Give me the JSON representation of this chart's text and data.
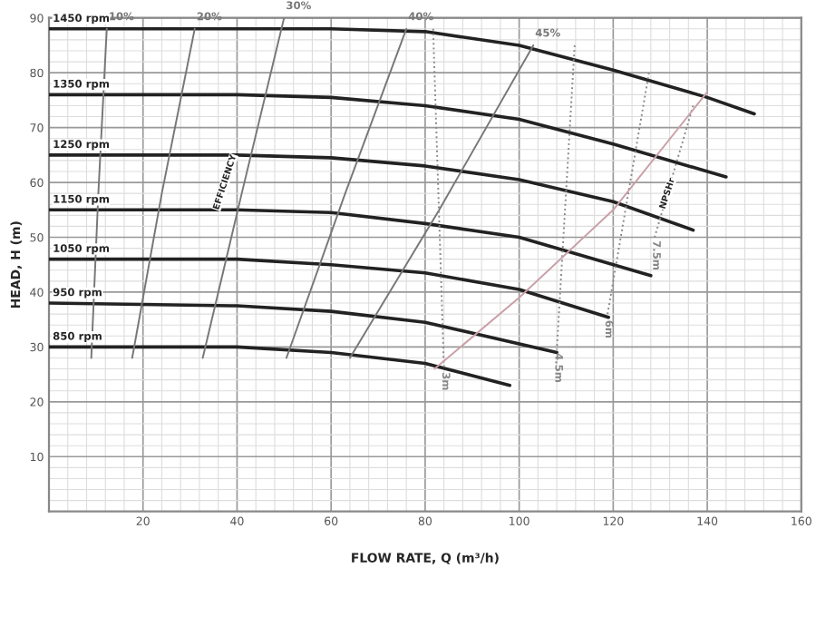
{
  "chart_data": {
    "type": "line",
    "xlabel": "FLOW RATE, Q (m³/h)",
    "ylabel": "HEAD, H (m)",
    "xlim": [
      0,
      160
    ],
    "ylim": [
      0,
      90
    ],
    "xticks": [
      {
        "value": 0,
        "label": null
      },
      20,
      40,
      60,
      80,
      100,
      120,
      140,
      160
    ],
    "yticks": [
      {
        "value": 0,
        "label": null
      },
      10,
      20,
      30,
      40,
      50,
      60,
      70,
      80,
      90
    ],
    "grid": true,
    "legend": false,
    "series": [
      {
        "name": "1450 rpm",
        "color": "#222222",
        "x": [
          0,
          40,
          60,
          80,
          100,
          120,
          140,
          150
        ],
        "values": [
          88,
          88,
          88,
          87.5,
          85,
          80.5,
          75.5,
          72.5
        ]
      },
      {
        "name": "1350 rpm",
        "color": "#222222",
        "x": [
          0,
          40,
          60,
          80,
          100,
          120,
          144
        ],
        "values": [
          76,
          76,
          75.5,
          74,
          71.5,
          67,
          61
        ]
      },
      {
        "name": "1250 rpm",
        "color": "#222222",
        "x": [
          0,
          40,
          60,
          80,
          100,
          120,
          137
        ],
        "values": [
          65,
          65,
          64.5,
          63,
          60.5,
          56.5,
          51.3
        ]
      },
      {
        "name": "1150 rpm",
        "color": "#222222",
        "x": [
          0,
          40,
          60,
          80,
          100,
          128
        ],
        "values": [
          55,
          55,
          54.5,
          52.5,
          50,
          43
        ]
      },
      {
        "name": "1050 rpm",
        "color": "#222222",
        "x": [
          0,
          40,
          60,
          80,
          100,
          119
        ],
        "values": [
          46,
          46,
          45,
          43.5,
          40.5,
          35.4
        ]
      },
      {
        "name": "950 rpm",
        "color": "#222222",
        "x": [
          0,
          40,
          60,
          80,
          108
        ],
        "values": [
          38,
          37.5,
          36.5,
          34.5,
          29
        ]
      },
      {
        "name": "850 rpm",
        "color": "#222222",
        "x": [
          0,
          40,
          60,
          80,
          98
        ],
        "values": [
          30,
          30,
          29,
          27,
          23
        ]
      },
      {
        "name": "10%",
        "color": "#777777",
        "x": [
          12.3,
          10.5,
          9
        ],
        "values": [
          88,
          58,
          28
        ]
      },
      {
        "name": "20%",
        "color": "#777777",
        "x": [
          31,
          24,
          17.7
        ],
        "values": [
          88,
          58,
          28
        ]
      },
      {
        "name": "30%",
        "color": "#777777",
        "x": [
          50,
          41,
          32.7
        ],
        "values": [
          90,
          58,
          28
        ]
      },
      {
        "name": "40%",
        "color": "#777777",
        "x": [
          76,
          63,
          50.5
        ],
        "values": [
          88,
          58,
          28
        ]
      },
      {
        "name": "45%",
        "color": "#777777",
        "x": [
          103,
          83,
          64
        ],
        "values": [
          85,
          55,
          28
        ]
      },
      {
        "name": "3m",
        "color": "#888888",
        "line_style": "dotted",
        "x": [
          81.7,
          84
        ],
        "values": [
          88,
          26
        ]
      },
      {
        "name": "4.5m",
        "color": "#888888",
        "line_style": "dotted",
        "x": [
          111.8,
          108
        ],
        "values": [
          85,
          29.5
        ]
      },
      {
        "name": "6m",
        "color": "#888888",
        "line_style": "dotted",
        "x": [
          127.6,
          118.7
        ],
        "values": [
          80,
          35.5
        ]
      },
      {
        "name": "7.5m",
        "color": "#888888",
        "line_style": "dotted",
        "x": [
          137,
          128.8
        ],
        "values": [
          74,
          50
        ]
      },
      {
        "color": "#c9a0a8",
        "x": [
          82,
          100,
          120,
          140
        ],
        "values": [
          26,
          39,
          55,
          76.5
        ]
      }
    ],
    "annotations": [
      "EFFICIENCY",
      "NPSHr"
    ]
  }
}
